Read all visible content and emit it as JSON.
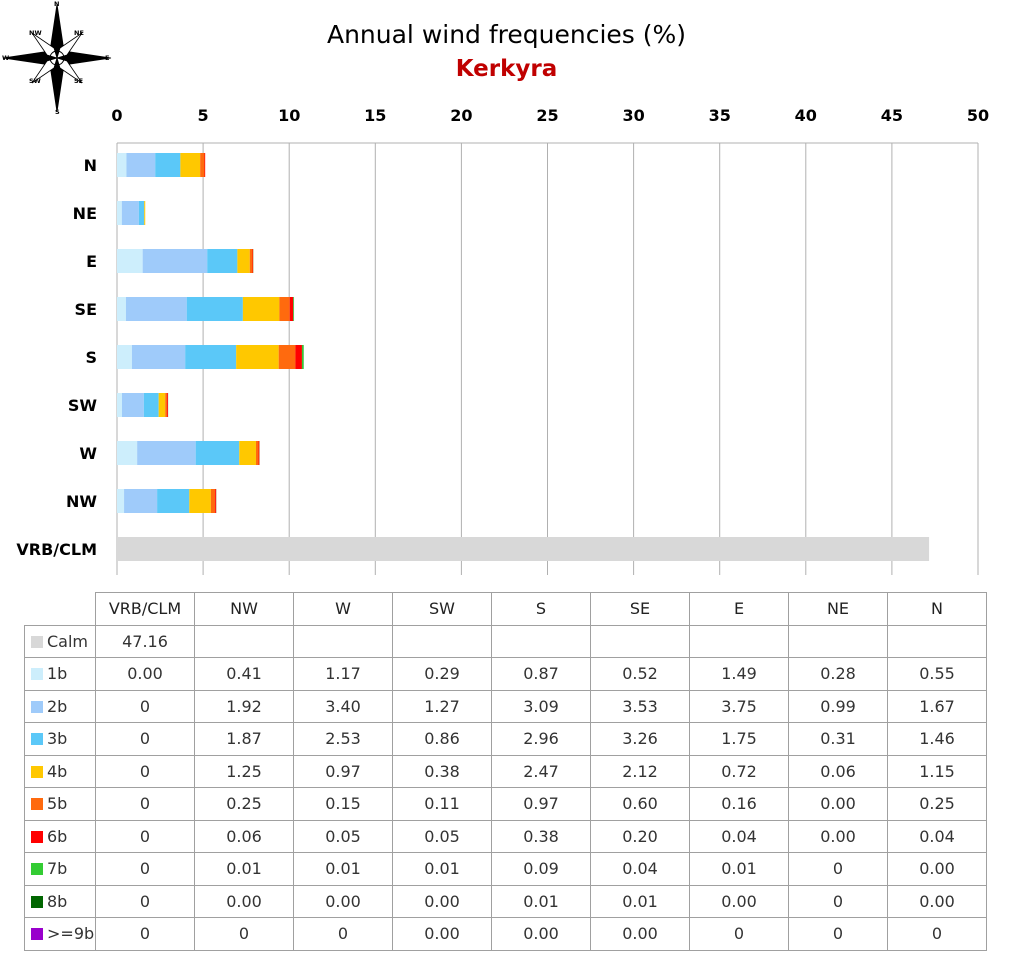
{
  "title": "Annual wind frequencies (%)",
  "subtitle": "Kerkyra",
  "colors": {
    "subtitle": "#c00000",
    "grid": "#b0b0b0",
    "speeds": [
      "#d8d8d8",
      "#cdeefc",
      "#9fcbfa",
      "#5bc8f8",
      "#ffc800",
      "#ff6a0e",
      "#ff0000",
      "#33cc33",
      "#006600",
      "#9900cc"
    ]
  },
  "compass": {
    "labels": [
      "N",
      "NE",
      "E",
      "SE",
      "S",
      "SW",
      "W",
      "NW"
    ]
  },
  "chart_data": {
    "type": "bar",
    "orientation": "horizontal",
    "stacked": true,
    "title": "Annual wind frequencies (%)",
    "subtitle": "Kerkyra",
    "xlim": [
      0,
      50
    ],
    "xticks": [
      0,
      5,
      10,
      15,
      20,
      25,
      30,
      35,
      40,
      45,
      50
    ],
    "grid": true,
    "categories": [
      "N",
      "NE",
      "E",
      "SE",
      "S",
      "SW",
      "W",
      "NW",
      "VRB/CLM"
    ],
    "series": [
      {
        "name": "Calm",
        "values": [
          0,
          0,
          0,
          0,
          0,
          0,
          0,
          0,
          47.16
        ]
      },
      {
        "name": "1b",
        "values": [
          0.55,
          0.28,
          1.49,
          0.52,
          0.87,
          0.29,
          1.17,
          0.41,
          0
        ]
      },
      {
        "name": "2b",
        "values": [
          1.67,
          0.99,
          3.75,
          3.53,
          3.09,
          1.27,
          3.4,
          1.92,
          0
        ]
      },
      {
        "name": "3b",
        "values": [
          1.46,
          0.31,
          1.75,
          3.26,
          2.96,
          0.86,
          2.53,
          1.87,
          0
        ]
      },
      {
        "name": "4b",
        "values": [
          1.15,
          0.06,
          0.72,
          2.12,
          2.47,
          0.38,
          0.97,
          1.25,
          0
        ]
      },
      {
        "name": "5b",
        "values": [
          0.25,
          0.0,
          0.16,
          0.6,
          0.97,
          0.11,
          0.15,
          0.25,
          0
        ]
      },
      {
        "name": "6b",
        "values": [
          0.04,
          0.0,
          0.04,
          0.2,
          0.38,
          0.05,
          0.05,
          0.06,
          0
        ]
      },
      {
        "name": "7b",
        "values": [
          0.0,
          0,
          0.01,
          0.04,
          0.09,
          0.01,
          0.01,
          0.01,
          0
        ]
      },
      {
        "name": "8b",
        "values": [
          0.0,
          0,
          0.0,
          0.01,
          0.01,
          0.0,
          0.0,
          0.0,
          0
        ]
      },
      {
        "name": ">=9b",
        "values": [
          0,
          0,
          0,
          0.0,
          0.0,
          0.0,
          0,
          0,
          0
        ]
      }
    ]
  },
  "table": {
    "columns": [
      "VRB/CLM",
      "NW",
      "W",
      "SW",
      "S",
      "SE",
      "E",
      "NE",
      "N"
    ],
    "rows": [
      {
        "label": "Calm",
        "cells": [
          "47.16",
          "",
          "",
          "",
          "",
          "",
          "",
          "",
          ""
        ]
      },
      {
        "label": "1b",
        "cells": [
          "0.00",
          "0.41",
          "1.17",
          "0.29",
          "0.87",
          "0.52",
          "1.49",
          "0.28",
          "0.55"
        ]
      },
      {
        "label": "2b",
        "cells": [
          "0",
          "1.92",
          "3.40",
          "1.27",
          "3.09",
          "3.53",
          "3.75",
          "0.99",
          "1.67"
        ]
      },
      {
        "label": "3b",
        "cells": [
          "0",
          "1.87",
          "2.53",
          "0.86",
          "2.96",
          "3.26",
          "1.75",
          "0.31",
          "1.46"
        ]
      },
      {
        "label": "4b",
        "cells": [
          "0",
          "1.25",
          "0.97",
          "0.38",
          "2.47",
          "2.12",
          "0.72",
          "0.06",
          "1.15"
        ]
      },
      {
        "label": "5b",
        "cells": [
          "0",
          "0.25",
          "0.15",
          "0.11",
          "0.97",
          "0.60",
          "0.16",
          "0.00",
          "0.25"
        ]
      },
      {
        "label": "6b",
        "cells": [
          "0",
          "0.06",
          "0.05",
          "0.05",
          "0.38",
          "0.20",
          "0.04",
          "0.00",
          "0.04"
        ]
      },
      {
        "label": "7b",
        "cells": [
          "0",
          "0.01",
          "0.01",
          "0.01",
          "0.09",
          "0.04",
          "0.01",
          "0",
          "0.00"
        ]
      },
      {
        "label": "8b",
        "cells": [
          "0",
          "0.00",
          "0.00",
          "0.00",
          "0.01",
          "0.01",
          "0.00",
          "0",
          "0.00"
        ]
      },
      {
        "label": ">=9b",
        "cells": [
          "0",
          "0",
          "0",
          "0.00",
          "0.00",
          "0.00",
          "0",
          "0",
          "0"
        ]
      }
    ]
  }
}
